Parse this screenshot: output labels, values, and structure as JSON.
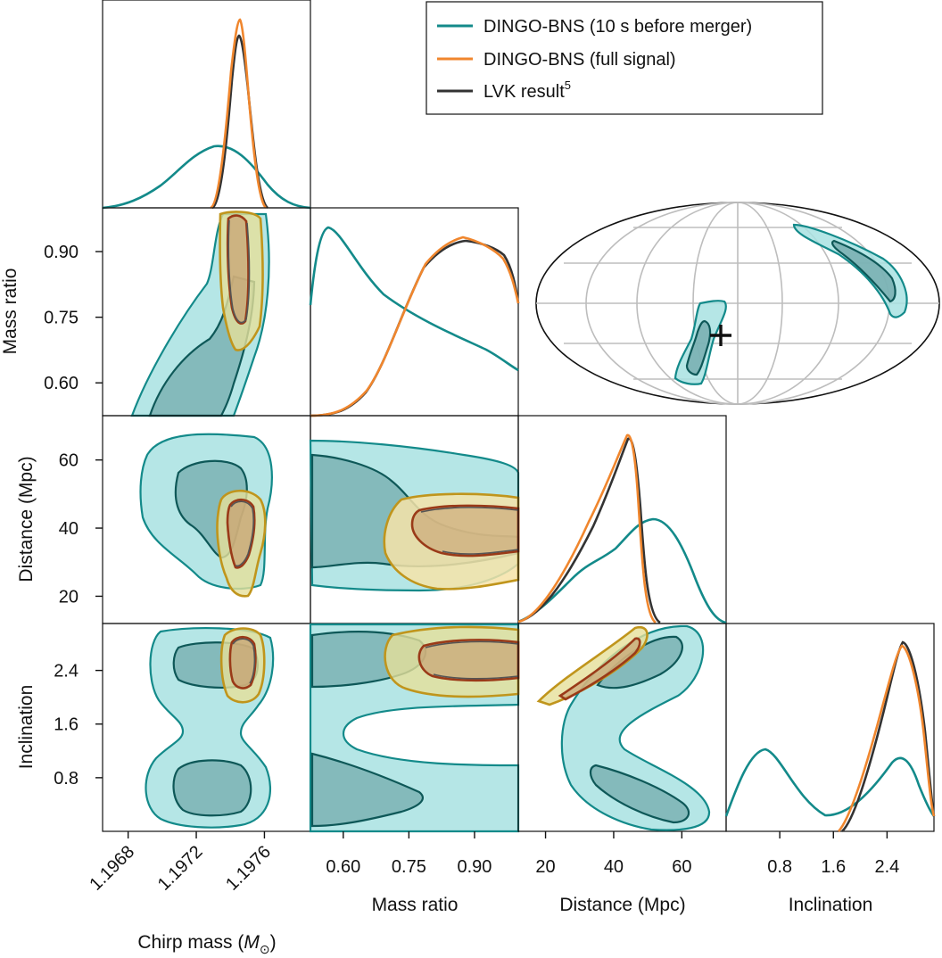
{
  "legend": {
    "entries": [
      {
        "label": "DINGO-BNS (10 s before merger)",
        "color": "#138a8a"
      },
      {
        "label": "DINGO-BNS (full signal)",
        "color": "#f0862d"
      },
      {
        "label": "LVK result",
        "sup": "5",
        "color": "#333333"
      }
    ]
  },
  "chart_data": {
    "type": "corner",
    "parameters": [
      "Chirp mass",
      "Mass ratio",
      "Distance (Mpc)",
      "Inclination"
    ],
    "axis_labels": {
      "x": {
        "chirp_mass": {
          "main": "Chirp mass (",
          "sym": "M",
          "sub": "⊙",
          "close": ")"
        },
        "mass_ratio": "Mass ratio",
        "distance": "Distance (Mpc)",
        "inclination": "Inclination"
      },
      "y": {
        "mass_ratio": "Mass ratio",
        "distance": "Distance (Mpc)",
        "inclination": "Inclination"
      }
    },
    "ranges": {
      "chirp_mass": [
        1.19665,
        1.19787
      ],
      "mass_ratio": [
        0.525,
        1.0
      ],
      "distance": [
        12,
        73
      ],
      "inclination": [
        0.0,
        3.1
      ]
    },
    "ticks": {
      "chirp_mass": [
        "1.1968",
        "1.1972",
        "1.1976"
      ],
      "chirp_mass_values": [
        1.1968,
        1.1972,
        1.1976
      ],
      "mass_ratio": [
        "0.60",
        "0.75",
        "0.90"
      ],
      "mass_ratio_values": [
        0.6,
        0.75,
        0.9
      ],
      "distance": [
        "20",
        "40",
        "60"
      ],
      "distance_values": [
        20,
        40,
        60
      ],
      "inclination": [
        "0.8",
        "1.6",
        "2.4"
      ],
      "inclination_values": [
        0.8,
        1.6,
        2.4
      ]
    },
    "series": [
      {
        "name": "DINGO-BNS (10 s before merger)",
        "color": "#138a8a",
        "fill": "#7fd6d6"
      },
      {
        "name": "DINGO-BNS (full signal)",
        "color": "#f0862d",
        "fill": "#f6e3a8"
      },
      {
        "name": "LVK result",
        "color": "#333333"
      }
    ],
    "sky_map": {
      "projection": "mollweide",
      "true_source_marker": "+"
    }
  }
}
